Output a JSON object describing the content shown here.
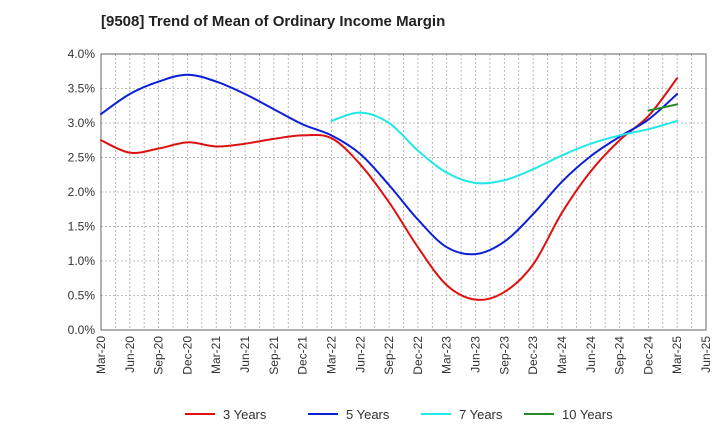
{
  "chart_data": {
    "type": "line",
    "title": "[9508]  Trend of Mean of Ordinary Income Margin",
    "xlabel": "",
    "ylabel": "",
    "x_ticks": [
      "Mar-20",
      "Jun-20",
      "Sep-20",
      "Dec-20",
      "Mar-21",
      "Jun-21",
      "Sep-21",
      "Dec-21",
      "Mar-22",
      "Jun-22",
      "Sep-22",
      "Dec-22",
      "Mar-23",
      "Jun-23",
      "Sep-23",
      "Dec-23",
      "Mar-24",
      "Jun-24",
      "Sep-24",
      "Dec-24",
      "Mar-25",
      "Jun-25"
    ],
    "y_ticks": [
      "0.0%",
      "0.5%",
      "1.0%",
      "1.5%",
      "2.0%",
      "2.5%",
      "3.0%",
      "3.5%",
      "4.0%"
    ],
    "ylim": [
      0,
      4.0
    ],
    "grid": true,
    "legend_position": "bottom",
    "series": [
      {
        "name": "3 Years",
        "color": "#dd1111",
        "x": [
          "Mar-20",
          "Jun-20",
          "Sep-20",
          "Dec-20",
          "Mar-21",
          "Jun-21",
          "Sep-21",
          "Dec-21",
          "Mar-22",
          "Jun-22",
          "Sep-22",
          "Dec-22",
          "Mar-23",
          "Jun-23",
          "Sep-23",
          "Dec-23",
          "Mar-24",
          "Jun-24",
          "Sep-24",
          "Dec-24",
          "Mar-25"
        ],
        "values": [
          2.75,
          2.57,
          2.63,
          2.72,
          2.66,
          2.7,
          2.77,
          2.82,
          2.78,
          2.4,
          1.85,
          1.2,
          0.65,
          0.44,
          0.55,
          0.95,
          1.7,
          2.3,
          2.75,
          3.1,
          3.65
        ]
      },
      {
        "name": "5 Years",
        "color": "#0a1fd6",
        "x": [
          "Mar-20",
          "Jun-20",
          "Sep-20",
          "Dec-20",
          "Mar-21",
          "Jun-21",
          "Sep-21",
          "Dec-21",
          "Mar-22",
          "Jun-22",
          "Sep-22",
          "Dec-22",
          "Mar-23",
          "Jun-23",
          "Sep-23",
          "Dec-23",
          "Mar-24",
          "Jun-24",
          "Sep-24",
          "Dec-24",
          "Mar-25"
        ],
        "values": [
          3.13,
          3.42,
          3.6,
          3.7,
          3.6,
          3.42,
          3.2,
          2.98,
          2.82,
          2.55,
          2.1,
          1.6,
          1.2,
          1.1,
          1.28,
          1.68,
          2.15,
          2.52,
          2.8,
          3.05,
          3.42
        ]
      },
      {
        "name": "7 Years",
        "color": "#22e8e8",
        "x": [
          "Mar-22",
          "Jun-22",
          "Sep-22",
          "Dec-22",
          "Mar-23",
          "Jun-23",
          "Sep-23",
          "Dec-23",
          "Mar-24",
          "Jun-24",
          "Sep-24",
          "Dec-24",
          "Mar-25"
        ],
        "values": [
          3.03,
          3.15,
          3.0,
          2.6,
          2.28,
          2.13,
          2.17,
          2.33,
          2.53,
          2.7,
          2.82,
          2.91,
          3.03
        ]
      },
      {
        "name": "10 Years",
        "color": "#2a8a2a",
        "x": [
          "Dec-24",
          "Mar-25"
        ],
        "values": [
          3.18,
          3.27
        ]
      }
    ]
  }
}
